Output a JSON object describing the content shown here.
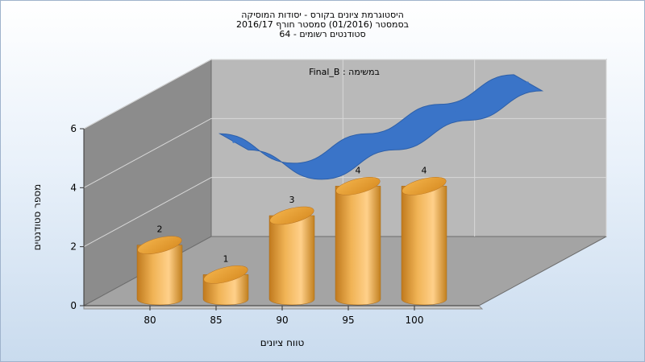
{
  "header": {
    "title_line1": "היסטוגרמת ציונים בקורס - יסודות המוסיקה",
    "title_line2": "בסמסטר (01/2016) סמסטר חורף 2016/17",
    "title_line3": "סטודנטים רשומים - 64"
  },
  "chart_data": {
    "type": "bar",
    "title": "היסטוגרמת ציונים בקורס - יסודות המוסיקה",
    "subtitle": "בסמסטר (01/2016) סמסטר חורף 2016/17 — סטודנטים רשומים - 64",
    "annotation": "Final_B : במשימה",
    "xlabel": "טווח ציונים",
    "ylabel": "מספר סטודנטים",
    "categories": [
      "80",
      "85",
      "90",
      "95",
      "100"
    ],
    "x_ticks": [
      "80",
      "85",
      "90",
      "95",
      "100"
    ],
    "y_ticks": [
      "0",
      "2",
      "4",
      "6"
    ],
    "ylim": [
      0,
      6
    ],
    "series": [
      {
        "values": [
          2,
          1,
          3,
          4,
          4
        ]
      },
      {
        "values": [
          4,
          3,
          4,
          5,
          6
        ]
      }
    ],
    "data_labels": [
      "2",
      "1",
      "3",
      "4",
      "4"
    ],
    "grid": true,
    "colors": {
      "bar": "#e0a040",
      "line": "#3a74c8",
      "back_wall": "#b9b9b9",
      "side_wall": "#8c8c8c",
      "floor": "#a4a4a4"
    }
  }
}
